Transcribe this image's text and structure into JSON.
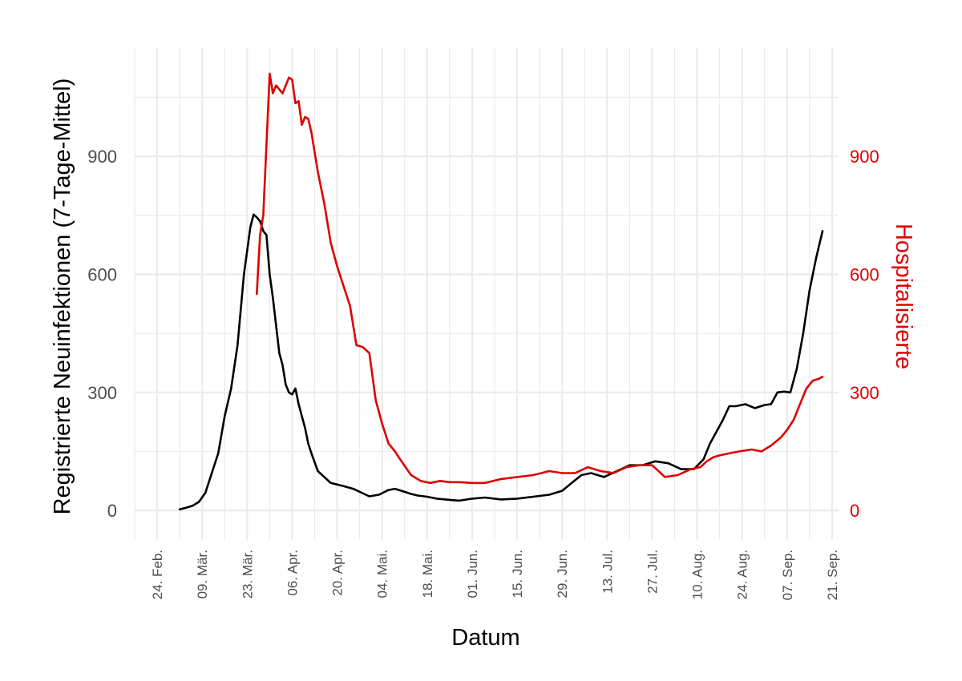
{
  "chart_data": {
    "type": "line",
    "xlabel": "Datum",
    "ylabel": "Registrierte Neuinfektionen (7-Tage-Mittel)",
    "y2label": "Hospitalisierte",
    "xlim": [
      "2020-02-17",
      "2020-09-23"
    ],
    "ylim": [
      -75,
      1175
    ],
    "y2lim": [
      -75,
      1175
    ],
    "x_tick_labels": [
      "24. Feb.",
      "09. Mär.",
      "23. Mär.",
      "06. Apr.",
      "20. Apr.",
      "04. Mai.",
      "18. Mai.",
      "01. Jun.",
      "15. Jun.",
      "29. Jun.",
      "13. Jul.",
      "27. Jul.",
      "10. Aug.",
      "24. Aug.",
      "07. Sep.",
      "21. Sep."
    ],
    "x_tick_dates": [
      "2020-02-24",
      "2020-03-09",
      "2020-03-23",
      "2020-04-06",
      "2020-04-20",
      "2020-05-04",
      "2020-05-18",
      "2020-06-01",
      "2020-06-15",
      "2020-06-29",
      "2020-07-13",
      "2020-07-27",
      "2020-08-10",
      "2020-08-24",
      "2020-09-07",
      "2020-09-21"
    ],
    "y_ticks": [
      0,
      300,
      600,
      900
    ],
    "y2_ticks": [
      0,
      300,
      600,
      900
    ],
    "grid": true,
    "colors": {
      "infections": "#000000",
      "hospitalized": "#e00000",
      "grid": "#ebebeb",
      "axis_text": "#4d4d4d"
    },
    "series": [
      {
        "axis": "left",
        "x": [
          "2020-03-02",
          "2020-03-04",
          "2020-03-06",
          "2020-03-08",
          "2020-03-10",
          "2020-03-12",
          "2020-03-14",
          "2020-03-16",
          "2020-03-18",
          "2020-03-20",
          "2020-03-22",
          "2020-03-24",
          "2020-03-25",
          "2020-03-26",
          "2020-03-27",
          "2020-03-28",
          "2020-03-29",
          "2020-03-30",
          "2020-03-31",
          "2020-04-01",
          "2020-04-02",
          "2020-04-03",
          "2020-04-04",
          "2020-04-05",
          "2020-04-06",
          "2020-04-07",
          "2020-04-08",
          "2020-04-09",
          "2020-04-10",
          "2020-04-11",
          "2020-04-12",
          "2020-04-14",
          "2020-04-16",
          "2020-04-18",
          "2020-04-19",
          "2020-04-20",
          "2020-04-22",
          "2020-04-25",
          "2020-04-30",
          "2020-05-03",
          "2020-05-06",
          "2020-05-08",
          "2020-05-10",
          "2020-05-13",
          "2020-05-15",
          "2020-05-18",
          "2020-05-21",
          "2020-05-25",
          "2020-05-28",
          "2020-06-01",
          "2020-06-05",
          "2020-06-10",
          "2020-06-15",
          "2020-06-20",
          "2020-06-25",
          "2020-06-29",
          "2020-07-02",
          "2020-07-05",
          "2020-07-08",
          "2020-07-12",
          "2020-07-16",
          "2020-07-20",
          "2020-07-24",
          "2020-07-28",
          "2020-08-01",
          "2020-08-05",
          "2020-08-09",
          "2020-08-12",
          "2020-08-14",
          "2020-08-16",
          "2020-08-18",
          "2020-08-20",
          "2020-08-22",
          "2020-08-25",
          "2020-08-28",
          "2020-08-31",
          "2020-09-02",
          "2020-09-04",
          "2020-09-06",
          "2020-09-08",
          "2020-09-10",
          "2020-09-12",
          "2020-09-14",
          "2020-09-16",
          "2020-09-18"
        ],
        "values": [
          3,
          7,
          12,
          22,
          45,
          95,
          145,
          240,
          310,
          420,
          600,
          720,
          752,
          745,
          735,
          710,
          700,
          600,
          540,
          470,
          400,
          370,
          320,
          300,
          295,
          310,
          270,
          240,
          210,
          170,
          145,
          100,
          85,
          70,
          68,
          66,
          62,
          55,
          36,
          40,
          52,
          55,
          50,
          42,
          38,
          35,
          30,
          27,
          25,
          30,
          33,
          28,
          30,
          35,
          40,
          50,
          70,
          90,
          95,
          85,
          100,
          115,
          115,
          125,
          120,
          105,
          105,
          130,
          170,
          200,
          230,
          265,
          265,
          270,
          260,
          268,
          270,
          300,
          302,
          300,
          360,
          450,
          560,
          640,
          710
        ]
      },
      {
        "axis": "right",
        "x": [
          "2020-03-26",
          "2020-03-27",
          "2020-03-28",
          "2020-03-29",
          "2020-03-30",
          "2020-03-31",
          "2020-04-01",
          "2020-04-02",
          "2020-04-03",
          "2020-04-04",
          "2020-04-05",
          "2020-04-06",
          "2020-04-07",
          "2020-04-08",
          "2020-04-09",
          "2020-04-10",
          "2020-04-11",
          "2020-04-12",
          "2020-04-14",
          "2020-04-16",
          "2020-04-18",
          "2020-04-20",
          "2020-04-22",
          "2020-04-24",
          "2020-04-26",
          "2020-04-28",
          "2020-04-30",
          "2020-05-02",
          "2020-05-04",
          "2020-05-06",
          "2020-05-08",
          "2020-05-10",
          "2020-05-13",
          "2020-05-16",
          "2020-05-19",
          "2020-05-22",
          "2020-05-25",
          "2020-05-28",
          "2020-06-01",
          "2020-06-05",
          "2020-06-10",
          "2020-06-15",
          "2020-06-20",
          "2020-06-25",
          "2020-06-29",
          "2020-07-03",
          "2020-07-07",
          "2020-07-11",
          "2020-07-15",
          "2020-07-19",
          "2020-07-23",
          "2020-07-27",
          "2020-07-31",
          "2020-08-04",
          "2020-08-08",
          "2020-08-11",
          "2020-08-13",
          "2020-08-15",
          "2020-08-17",
          "2020-08-20",
          "2020-08-23",
          "2020-08-27",
          "2020-08-30",
          "2020-09-02",
          "2020-09-05",
          "2020-09-07",
          "2020-09-09",
          "2020-09-11",
          "2020-09-13",
          "2020-09-15",
          "2020-09-17",
          "2020-09-18"
        ],
        "values": [
          550,
          700,
          750,
          930,
          1110,
          1060,
          1080,
          1070,
          1060,
          1080,
          1100,
          1095,
          1035,
          1040,
          980,
          1000,
          995,
          960,
          860,
          780,
          680,
          620,
          570,
          520,
          420,
          415,
          400,
          280,
          220,
          170,
          150,
          125,
          90,
          75,
          70,
          75,
          72,
          72,
          70,
          70,
          80,
          85,
          90,
          100,
          95,
          95,
          110,
          100,
          95,
          110,
          115,
          115,
          85,
          90,
          105,
          110,
          125,
          135,
          140,
          145,
          150,
          155,
          150,
          165,
          185,
          205,
          230,
          270,
          310,
          330,
          335,
          340
        ]
      }
    ]
  }
}
